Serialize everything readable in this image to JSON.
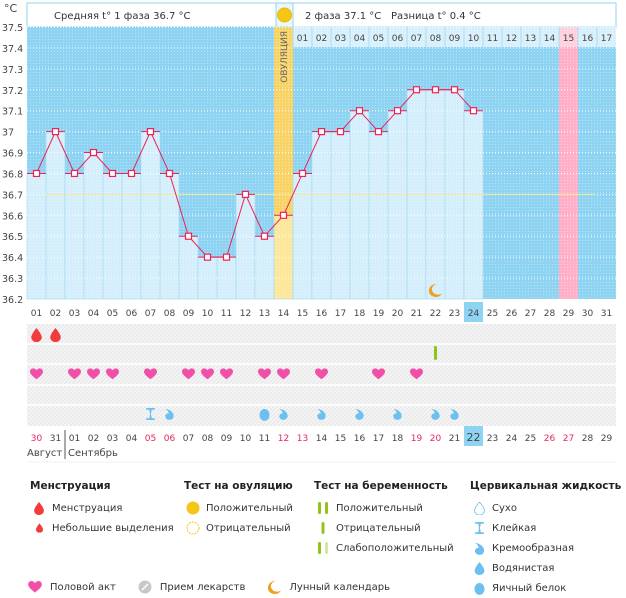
{
  "header": {
    "unit_label": "°C",
    "phase1_text": "Средняя t° 1 фаза 36.7 °C",
    "phase2_text": "2 фаза 37.1 °C",
    "diff_text": "Разница t° 0.4 °C",
    "ovulation_label": "ОВУЛЯЦИЯ"
  },
  "colors": {
    "bg_blue": "#8ed4f2",
    "bar_fill": "#d4eefb",
    "line_red": "#ee2255",
    "cover_line": "#f5e98a",
    "ovulation_band": "#fce79a",
    "period_pink": "#ffb0c8",
    "today_blue": "#8ed4f2",
    "heart_pink": "#f24fa8",
    "drop_red": "#f23c3c",
    "fluid_blue": "#6cc0f0",
    "test_green": "#93c21a",
    "moon_orange": "#f0a020"
  },
  "chart_data": {
    "type": "line",
    "title": "",
    "ylabel": "°C",
    "ylim": [
      36.2,
      37.5
    ],
    "yticks": [
      "37.5",
      "37.4",
      "37.3",
      "37.2",
      "37.1",
      "37",
      "36.9",
      "36.8",
      "36.7",
      "36.6",
      "36.5",
      "36.4",
      "36.3",
      "36.2"
    ],
    "cycle_days": [
      "01",
      "02",
      "03",
      "04",
      "05",
      "06",
      "07",
      "08",
      "09",
      "10",
      "11",
      "12",
      "13",
      "14",
      "15",
      "16",
      "17",
      "18",
      "19",
      "20",
      "21",
      "22",
      "23",
      "24",
      "25",
      "26",
      "27",
      "28",
      "29",
      "30",
      "31"
    ],
    "phase2_day_labels": [
      "01",
      "02",
      "03",
      "04",
      "05",
      "06",
      "07",
      "08",
      "09",
      "10",
      "11",
      "12",
      "13",
      "14",
      "15",
      "16",
      "17"
    ],
    "temperatures": [
      36.8,
      37.0,
      36.8,
      36.9,
      36.8,
      36.8,
      37.0,
      36.8,
      36.5,
      36.4,
      36.4,
      36.7,
      36.5,
      36.6,
      36.8,
      37.0,
      37.0,
      37.1,
      37.0,
      37.1,
      37.2,
      37.2,
      37.2,
      37.1
    ],
    "cover_line": 36.7,
    "ovulation_day": 14,
    "today_cycle_day": 24,
    "expected_period_day": 29,
    "moon_day": 22,
    "calendar_days": [
      "30",
      "31",
      "01",
      "02",
      "03",
      "04",
      "05",
      "06",
      "07",
      "08",
      "09",
      "10",
      "11",
      "12",
      "13",
      "14",
      "15",
      "16",
      "17",
      "18",
      "19",
      "20",
      "21",
      "22",
      "23",
      "24",
      "25",
      "26",
      "27",
      "28",
      "29"
    ],
    "weekend_calendar_days_idx": [
      1,
      7,
      8,
      14,
      15,
      21,
      22,
      28,
      29
    ],
    "month_labels": [
      "Август",
      "Сентябрь"
    ],
    "menstruation_days": [
      1,
      2
    ],
    "pregnancy_test_negative_days": [
      22
    ],
    "intercourse_days": [
      1,
      3,
      4,
      5,
      7,
      9,
      10,
      11,
      13,
      14,
      16,
      19,
      21
    ],
    "cervical_fluid": [
      {
        "day": 7,
        "type": "sticky"
      },
      {
        "day": 8,
        "type": "creamy"
      },
      {
        "day": 13,
        "type": "egg-white"
      },
      {
        "day": 14,
        "type": "creamy"
      },
      {
        "day": 16,
        "type": "creamy"
      },
      {
        "day": 18,
        "type": "creamy"
      },
      {
        "day": 20,
        "type": "creamy"
      },
      {
        "day": 22,
        "type": "creamy"
      },
      {
        "day": 23,
        "type": "creamy"
      }
    ]
  },
  "legend": {
    "menstruation": {
      "title": "Менструация",
      "items": [
        "Менструация",
        "Небольшие выделения"
      ]
    },
    "ovulation_test": {
      "title": "Тест на овуляцию",
      "items": [
        "Положительный",
        "Отрицательный"
      ]
    },
    "pregnancy_test": {
      "title": "Тест на беременность",
      "items": [
        "Положительный",
        "Отрицательный",
        "Слабоположительный"
      ]
    },
    "cervical_fluid": {
      "title": "Цервикальная жидкость",
      "items": [
        "Сухо",
        "Клейкая",
        "Кремообразная",
        "Водянистая",
        "Яичный белок"
      ]
    },
    "other": [
      "Половой акт",
      "Прием лекарств",
      "Лунный календарь"
    ]
  }
}
